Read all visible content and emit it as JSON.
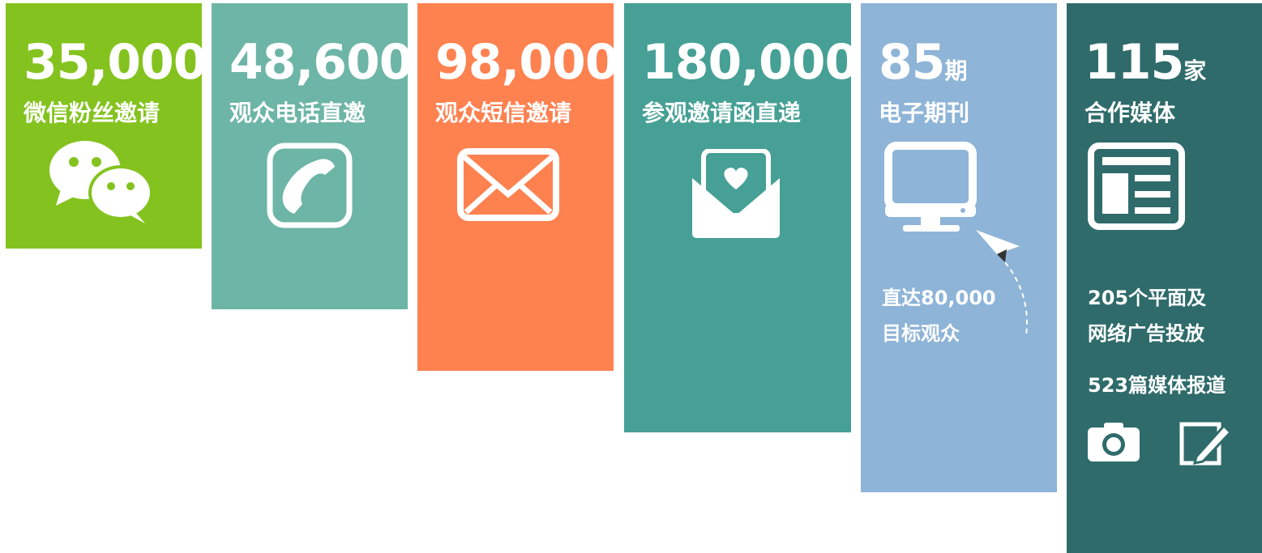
{
  "cards": [
    {
      "number": "35,000",
      "label": "微信粉丝邀请"
    },
    {
      "number": "48,600",
      "label": "观众电话直邀"
    },
    {
      "number": "98,000",
      "label": "观众短信邀请"
    },
    {
      "number": "180,000",
      "label": "参观邀请函直递"
    },
    {
      "number": "85",
      "unit": "期",
      "label": "电子期刊",
      "notes": [
        "直达80,000",
        "目标观众"
      ]
    },
    {
      "number": "115",
      "unit": "家",
      "label": "合作媒体",
      "notes": [
        "205个平面及",
        "网络广告投放",
        "523篇媒体报道"
      ]
    }
  ]
}
